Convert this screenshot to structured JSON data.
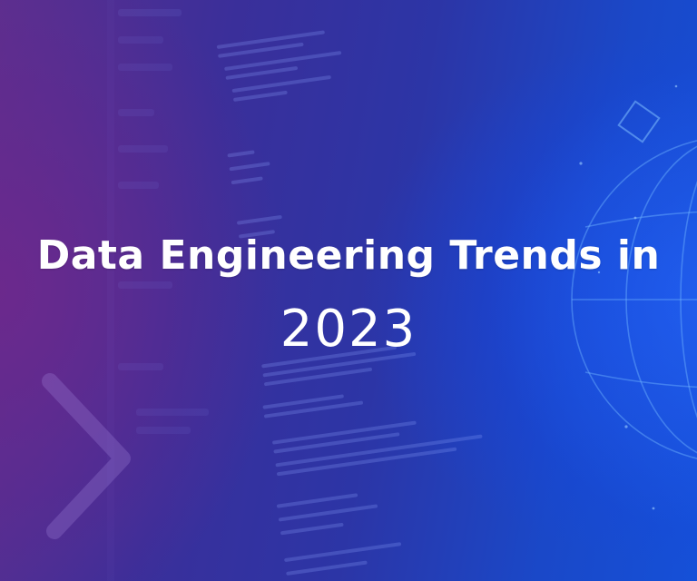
{
  "banner": {
    "title": "Data Engineering Trends in",
    "year": "2023"
  },
  "decorations": {
    "background": "code-screen-background",
    "globe": "globe-outline-graphic",
    "chevron": "chevron-outline-graphic"
  },
  "colors": {
    "left": "#5a2f8f",
    "center": "#2c35a6",
    "right": "#1550d8",
    "text": "#ffffff"
  }
}
